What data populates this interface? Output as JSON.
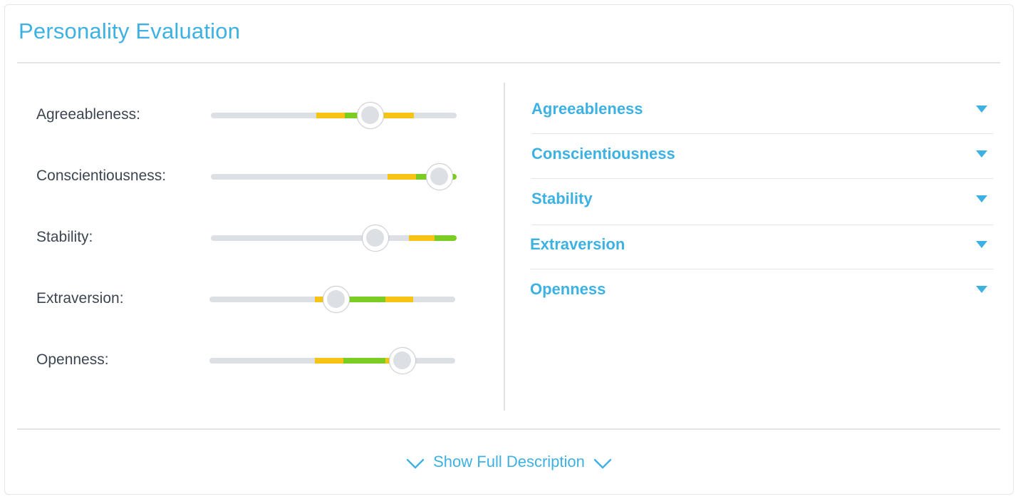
{
  "title": "Personality Evaluation",
  "colors": {
    "accent": "#3eb1e3",
    "track": "#dcdfe3",
    "range_outer": "#f7c415",
    "range_inner": "#7ccd23"
  },
  "traits": [
    {
      "label": "Agreeableness:",
      "value": 0.65,
      "ranges": [
        {
          "color": "yellow",
          "from": 0.43,
          "to": 0.545
        },
        {
          "color": "green",
          "from": 0.545,
          "to": 0.62
        },
        {
          "color": "yellow",
          "from": 0.62,
          "to": 0.825
        }
      ]
    },
    {
      "label": "Conscientiousness:",
      "value": 0.93,
      "ranges": [
        {
          "color": "yellow",
          "from": 0.72,
          "to": 0.835
        },
        {
          "color": "green",
          "from": 0.835,
          "to": 1.0
        }
      ]
    },
    {
      "label": "Stability:",
      "value": 0.67,
      "ranges": [
        {
          "color": "yellow",
          "from": 0.805,
          "to": 0.91
        },
        {
          "color": "green",
          "from": 0.91,
          "to": 1.0
        }
      ]
    },
    {
      "label": "Extraversion:",
      "value": 0.515,
      "ranges": [
        {
          "color": "yellow",
          "from": 0.43,
          "to": 0.49
        },
        {
          "color": "green",
          "from": 0.49,
          "to": 0.715
        },
        {
          "color": "yellow",
          "from": 0.715,
          "to": 0.828
        }
      ]
    },
    {
      "label": "Openness:",
      "value": 0.785,
      "ranges": [
        {
          "color": "yellow",
          "from": 0.43,
          "to": 0.545
        },
        {
          "color": "green",
          "from": 0.545,
          "to": 0.715
        },
        {
          "color": "yellow",
          "from": 0.715,
          "to": 0.76
        }
      ]
    }
  ],
  "accordion": [
    {
      "label": "Agreeableness",
      "icon": "caret-down-icon"
    },
    {
      "label": "Conscientiousness",
      "icon": "caret-down-icon"
    },
    {
      "label": "Stability",
      "icon": "caret-down-icon"
    },
    {
      "label": "Extraversion",
      "icon": "caret-down-icon"
    },
    {
      "label": "Openness",
      "icon": "caret-down-icon"
    }
  ],
  "footer": {
    "show_full_label": "Show Full Description",
    "icon": "chevron-down-icon"
  }
}
